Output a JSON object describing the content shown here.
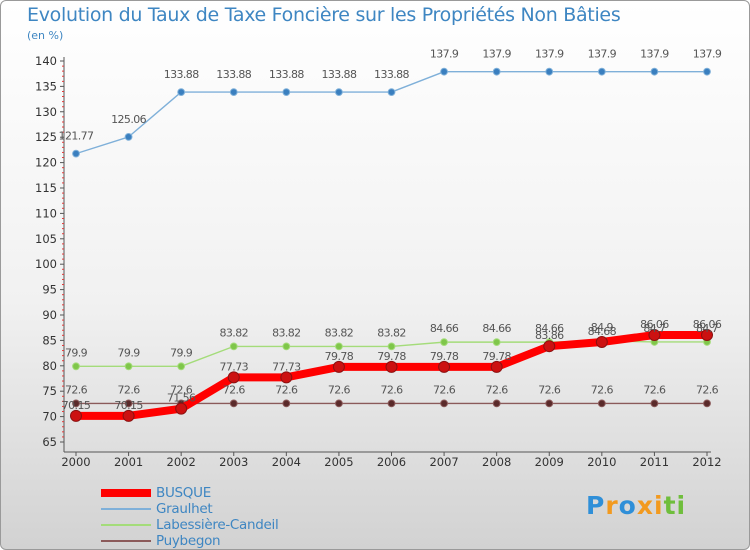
{
  "chart_data": {
    "type": "line",
    "title": "Evolution du Taux de Taxe Foncière sur les Propriétés Non Bâties",
    "unit_label": "(en %)",
    "xlabel": "",
    "ylabel": "",
    "x": [
      "2000",
      "2001",
      "2002",
      "2003",
      "2004",
      "2005",
      "2006",
      "2007",
      "2008",
      "2009",
      "2010",
      "2011",
      "2012"
    ],
    "y_ticks": [
      "65",
      "70",
      "75",
      "80",
      "85",
      "90",
      "95",
      "100",
      "105",
      "110",
      "115",
      "120",
      "125",
      "130",
      "135",
      "140"
    ],
    "ylim": [
      65,
      140
    ],
    "grid": false,
    "legend_position": "bottom-left",
    "series": [
      {
        "name": "Graulhet",
        "color": "#7fb0d9",
        "marker_color": "#3a7fbf",
        "values": [
          121.77,
          125.06,
          133.88,
          133.88,
          133.88,
          133.88,
          133.88,
          137.9,
          137.9,
          137.9,
          137.9,
          137.9,
          137.9
        ],
        "labels": [
          "121.77",
          "125.06",
          "133.88",
          "133.88",
          "133.88",
          "133.88",
          "133.88",
          "137.9",
          "137.9",
          "137.9",
          "137.9",
          "137.9",
          "137.9"
        ]
      },
      {
        "name": "Labessière-Candeil",
        "color": "#a4dc7a",
        "marker_color": "#7fc64a",
        "values": [
          79.9,
          79.9,
          79.9,
          83.82,
          83.82,
          83.82,
          83.82,
          84.66,
          84.66,
          84.66,
          84.9,
          84.7,
          84.7
        ],
        "labels": [
          "79.9",
          "79.9",
          "79.9",
          "83.82",
          "83.82",
          "83.82",
          "83.82",
          "84.66",
          "84.66",
          "84.66",
          "84.9",
          "84.7",
          "84.7"
        ]
      },
      {
        "name": "Puybegon",
        "color": "#8b5a5a",
        "marker_color": "#5a2a2a",
        "values": [
          72.6,
          72.6,
          72.6,
          72.6,
          72.6,
          72.6,
          72.6,
          72.6,
          72.6,
          72.6,
          72.6,
          72.6,
          72.6
        ],
        "labels": [
          "72.6",
          "72.6",
          "72.6",
          "72.6",
          "72.6",
          "72.6",
          "72.6",
          "72.6",
          "72.6",
          "72.6",
          "72.6",
          "72.6",
          "72.6"
        ]
      },
      {
        "name": "BUSQUE",
        "color": "#ff0000",
        "marker_color": "#cc1111",
        "values": [
          70.15,
          70.15,
          71.56,
          77.73,
          77.73,
          79.78,
          79.78,
          79.78,
          79.78,
          83.86,
          84.68,
          86.06,
          86.06
        ],
        "labels": [
          "70.15",
          "70.15",
          "71.56",
          "77.73",
          "77.73",
          "79.78",
          "79.78",
          "79.78",
          "79.78",
          "83.86",
          "84.68",
          "86.06",
          "86.06"
        ]
      }
    ],
    "legend_order": [
      "BUSQUE",
      "Graulhet",
      "Labessière-Candeil",
      "Puybegon"
    ]
  },
  "legend": [
    {
      "label": "BUSQUE",
      "color": "#ff0000"
    },
    {
      "label": "Graulhet",
      "color": "#7fb0d9"
    },
    {
      "label": "Labessière-Candeil",
      "color": "#a4dc7a"
    },
    {
      "label": "Puybegon",
      "color": "#8b5a5a"
    }
  ],
  "brand": {
    "letters": [
      "P",
      "r",
      "o",
      "x",
      "i",
      "t",
      "i"
    ],
    "colors": [
      "#2f8fd8",
      "#f29a1f",
      "#2f8fd8",
      "#f29a1f",
      "#f29a1f",
      "#6fbe3c",
      "#6fbe3c"
    ]
  }
}
